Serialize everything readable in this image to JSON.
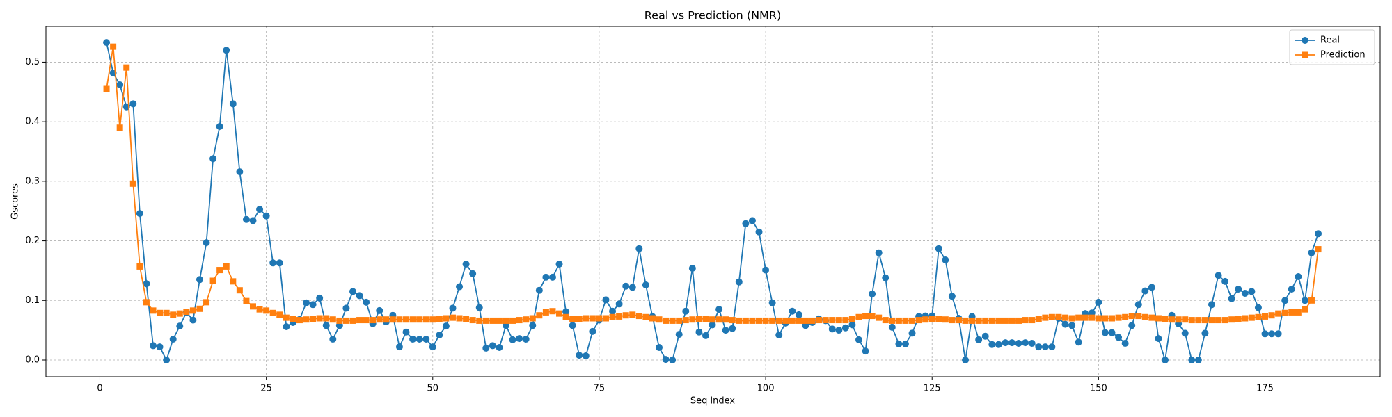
{
  "chart_data": {
    "type": "line",
    "title": "Real vs Prediction (NMR)",
    "xlabel": "Seq index",
    "ylabel": "Gscores",
    "grid": true,
    "legend": "upper right",
    "xlim": [
      -8.1,
      192.3
    ],
    "ylim": [
      -0.028,
      0.56
    ],
    "xticks": [
      0,
      25,
      50,
      75,
      100,
      125,
      150,
      175
    ],
    "yticks": [
      {
        "value": 0,
        "label": "0.0"
      },
      0.1,
      0.2,
      0.3,
      0.4,
      0.5
    ],
    "x": [
      1,
      2,
      3,
      4,
      5,
      6,
      7,
      8,
      9,
      10,
      11,
      12,
      13,
      14,
      15,
      16,
      17,
      18,
      19,
      20,
      21,
      22,
      23,
      24,
      25,
      26,
      27,
      28,
      29,
      30,
      31,
      32,
      33,
      34,
      35,
      36,
      37,
      38,
      39,
      40,
      41,
      42,
      43,
      44,
      45,
      46,
      47,
      48,
      49,
      50,
      51,
      52,
      53,
      54,
      55,
      56,
      57,
      58,
      59,
      60,
      61,
      62,
      63,
      64,
      65,
      66,
      67,
      68,
      69,
      70,
      71,
      72,
      73,
      74,
      75,
      76,
      77,
      78,
      79,
      80,
      81,
      82,
      83,
      84,
      85,
      86,
      87,
      88,
      89,
      90,
      91,
      92,
      93,
      94,
      95,
      96,
      97,
      98,
      99,
      100,
      101,
      102,
      103,
      104,
      105,
      106,
      107,
      108,
      109,
      110,
      111,
      112,
      113,
      114,
      115,
      116,
      117,
      118,
      119,
      120,
      121,
      122,
      123,
      124,
      125,
      126,
      127,
      128,
      129,
      130,
      131,
      132,
      133,
      134,
      135,
      136,
      137,
      138,
      139,
      140,
      141,
      142,
      143,
      144,
      145,
      146,
      147,
      148,
      149,
      150,
      151,
      152,
      153,
      154,
      155,
      156,
      157,
      158,
      159,
      160,
      161,
      162,
      163,
      164,
      165,
      166,
      167,
      168,
      169,
      170,
      171,
      172,
      173,
      174,
      175,
      176,
      177,
      178,
      179,
      180,
      181,
      182,
      183
    ],
    "series": [
      {
        "name": "Real",
        "color": "#1f77b4",
        "marker": "circle",
        "values": [
          0.533,
          0.482,
          0.462,
          0.425,
          0.43,
          0.246,
          0.128,
          0.024,
          0.022,
          0.0,
          0.035,
          0.057,
          0.08,
          0.067,
          0.135,
          0.197,
          0.338,
          0.392,
          0.52,
          0.43,
          0.316,
          0.236,
          0.234,
          0.253,
          0.242,
          0.163,
          0.163,
          0.056,
          0.063,
          0.068,
          0.096,
          0.093,
          0.104,
          0.058,
          0.035,
          0.058,
          0.087,
          0.115,
          0.108,
          0.097,
          0.061,
          0.083,
          0.064,
          0.075,
          0.022,
          0.047,
          0.035,
          0.035,
          0.035,
          0.022,
          0.042,
          0.057,
          0.087,
          0.123,
          0.161,
          0.145,
          0.088,
          0.02,
          0.024,
          0.021,
          0.058,
          0.034,
          0.036,
          0.035,
          0.058,
          0.117,
          0.139,
          0.139,
          0.161,
          0.081,
          0.058,
          0.008,
          0.007,
          0.048,
          0.067,
          0.101,
          0.082,
          0.094,
          0.124,
          0.122,
          0.187,
          0.126,
          0.073,
          0.021,
          0.001,
          0.0,
          0.043,
          0.082,
          0.154,
          0.047,
          0.041,
          0.059,
          0.085,
          0.05,
          0.053,
          0.131,
          0.229,
          0.234,
          0.215,
          0.151,
          0.096,
          0.042,
          0.062,
          0.082,
          0.076,
          0.058,
          0.063,
          0.069,
          0.066,
          0.052,
          0.05,
          0.054,
          0.059,
          0.034,
          0.015,
          0.111,
          0.18,
          0.138,
          0.055,
          0.027,
          0.027,
          0.045,
          0.073,
          0.074,
          0.074,
          0.187,
          0.168,
          0.107,
          0.07,
          0.0,
          0.073,
          0.034,
          0.04,
          0.026,
          0.026,
          0.029,
          0.029,
          0.028,
          0.029,
          0.028,
          0.022,
          0.022,
          0.022,
          0.07,
          0.06,
          0.058,
          0.03,
          0.078,
          0.079,
          0.097,
          0.046,
          0.046,
          0.038,
          0.028,
          0.058,
          0.093,
          0.116,
          0.122,
          0.036,
          0.0,
          0.075,
          0.061,
          0.045,
          0.0,
          0.0,
          0.045,
          0.093,
          0.142,
          0.132,
          0.103,
          0.119,
          0.112,
          0.115,
          0.088,
          0.044,
          0.044,
          0.044,
          0.1,
          0.119,
          0.14,
          0.1,
          0.18,
          0.212
        ]
      },
      {
        "name": "Prediction",
        "color": "#ff7f0e",
        "marker": "square",
        "values": [
          0.455,
          0.526,
          0.39,
          0.491,
          0.296,
          0.157,
          0.097,
          0.083,
          0.079,
          0.079,
          0.076,
          0.078,
          0.081,
          0.083,
          0.086,
          0.097,
          0.133,
          0.151,
          0.157,
          0.132,
          0.117,
          0.099,
          0.09,
          0.085,
          0.083,
          0.079,
          0.076,
          0.071,
          0.069,
          0.067,
          0.068,
          0.069,
          0.07,
          0.07,
          0.068,
          0.066,
          0.066,
          0.066,
          0.067,
          0.067,
          0.067,
          0.068,
          0.068,
          0.068,
          0.068,
          0.068,
          0.068,
          0.068,
          0.068,
          0.068,
          0.069,
          0.07,
          0.071,
          0.07,
          0.069,
          0.067,
          0.066,
          0.066,
          0.066,
          0.066,
          0.066,
          0.066,
          0.067,
          0.068,
          0.07,
          0.075,
          0.08,
          0.082,
          0.078,
          0.072,
          0.069,
          0.069,
          0.07,
          0.07,
          0.07,
          0.07,
          0.072,
          0.073,
          0.075,
          0.076,
          0.074,
          0.072,
          0.07,
          0.068,
          0.066,
          0.066,
          0.066,
          0.067,
          0.068,
          0.069,
          0.069,
          0.068,
          0.068,
          0.068,
          0.067,
          0.066,
          0.066,
          0.066,
          0.066,
          0.066,
          0.066,
          0.066,
          0.066,
          0.066,
          0.066,
          0.066,
          0.066,
          0.067,
          0.067,
          0.067,
          0.067,
          0.067,
          0.069,
          0.072,
          0.074,
          0.074,
          0.071,
          0.067,
          0.066,
          0.066,
          0.066,
          0.066,
          0.067,
          0.068,
          0.069,
          0.069,
          0.068,
          0.067,
          0.067,
          0.066,
          0.066,
          0.066,
          0.066,
          0.066,
          0.066,
          0.066,
          0.066,
          0.066,
          0.067,
          0.067,
          0.069,
          0.071,
          0.072,
          0.072,
          0.071,
          0.07,
          0.071,
          0.071,
          0.071,
          0.07,
          0.07,
          0.07,
          0.071,
          0.072,
          0.074,
          0.074,
          0.072,
          0.071,
          0.07,
          0.069,
          0.068,
          0.068,
          0.068,
          0.067,
          0.067,
          0.067,
          0.067,
          0.067,
          0.067,
          0.068,
          0.069,
          0.07,
          0.071,
          0.072,
          0.073,
          0.075,
          0.078,
          0.079,
          0.08,
          0.08,
          0.085,
          0.1,
          0.186
        ]
      }
    ]
  }
}
